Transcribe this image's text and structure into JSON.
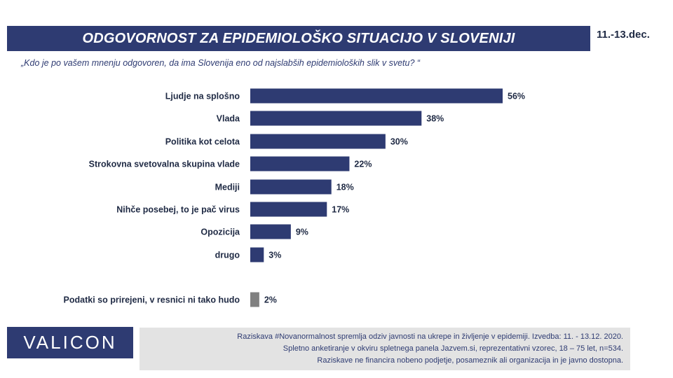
{
  "header": {
    "title": "ODGOVORNOST ZA EPIDEMIOLOŠKO SITUACIJO V SLOVENIJI",
    "date": "11.-13.dec.",
    "question": "„Kdo je po vašem mnenju odgovoren, da ima Slovenija eno od najslabših epidemioloških slik v svetu? “"
  },
  "chart_data": {
    "type": "bar",
    "orientation": "horizontal",
    "categories": [
      "Ljudje na splošno",
      "Vlada",
      "Politika kot celota",
      "Strokovna svetovalna skupina vlade",
      "Mediji",
      "Nihče posebej, to je pač virus",
      "Opozicija",
      "drugo",
      "Podatki so prirejeni, v resnici ni tako hudo"
    ],
    "values": [
      56,
      38,
      30,
      22,
      18,
      17,
      9,
      3,
      2
    ],
    "value_labels": [
      "56%",
      "38%",
      "30%",
      "22%",
      "18%",
      "17%",
      "9%",
      "3%",
      "2%"
    ],
    "bar_colors": [
      "#2e3b72",
      "#2e3b72",
      "#2e3b72",
      "#2e3b72",
      "#2e3b72",
      "#2e3b72",
      "#2e3b72",
      "#2e3b72",
      "#808080"
    ],
    "xlim": [
      0,
      56
    ],
    "grid": false,
    "legend": "none"
  },
  "footer": {
    "logo": "VALICON",
    "lines": [
      "Raziskava #Novanormalnost spremlja odziv javnosti na ukrepe in življenje v epidemiji. Izvedba: 11. - 13.12. 2020.",
      "Spletno anketiranje v okviru spletnega panela Jazvem.si, reprezentativni vzorec, 18 – 75 let, n=534.",
      "Raziskave ne financira nobeno podjetje, posameznik ali organizacija in je javno dostopna."
    ]
  }
}
